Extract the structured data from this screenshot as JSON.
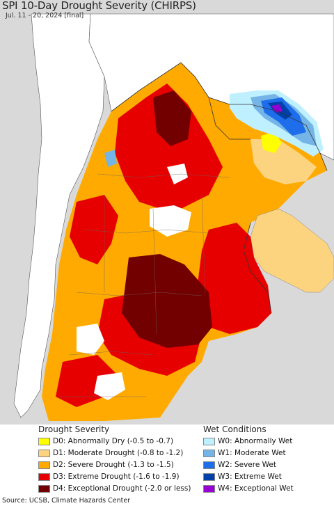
{
  "header": {
    "title": "SPI 10-Day Drought Severity (CHIRPS)",
    "subtitle": "Jul. 11 - 20, 2024 [final]"
  },
  "colors": {
    "ocean": "#d9d9d9",
    "land_nodata": "#ffffff",
    "D0": "#ffff00",
    "D1": "#fcd37f",
    "D2": "#ffaa00",
    "D3": "#e60000",
    "D4": "#730000",
    "W0": "#bef0ff",
    "W1": "#74b4e6",
    "W2": "#1e6eeb",
    "W3": "#0040a8",
    "W4": "#9600d2"
  },
  "legend": {
    "drought_title": "Drought Severity",
    "wet_title": "Wet Conditions",
    "drought_items": [
      {
        "code": "D0",
        "label": "D0: Abnormally Dry (-0.5 to -0.7)",
        "color": "#ffff00"
      },
      {
        "code": "D1",
        "label": "D1: Moderate Drought (-0.8 to -1.2)",
        "color": "#fcd37f"
      },
      {
        "code": "D2",
        "label": "D2: Severe Drought (-1.3 to -1.5)",
        "color": "#ffaa00"
      },
      {
        "code": "D3",
        "label": "D3: Extreme Drought (-1.6 to -1.9)",
        "color": "#e60000"
      },
      {
        "code": "D4",
        "label": "D4: Exceptional Drought (-2.0 or less)",
        "color": "#730000"
      }
    ],
    "wet_items": [
      {
        "code": "W0",
        "label": "W0: Abnormally Wet",
        "color": "#bef0ff"
      },
      {
        "code": "W1",
        "label": "W1: Moderate Wet",
        "color": "#74b4e6"
      },
      {
        "code": "W2",
        "label": "W2: Severe Wet",
        "color": "#1e6eeb"
      },
      {
        "code": "W3",
        "label": "W3: Extreme Wet",
        "color": "#0040a8"
      },
      {
        "code": "W4",
        "label": "W4: Exceptional Wet",
        "color": "#9600d2"
      }
    ]
  },
  "footer": {
    "source": "Source: UCSB, Climate Hazards Center"
  }
}
